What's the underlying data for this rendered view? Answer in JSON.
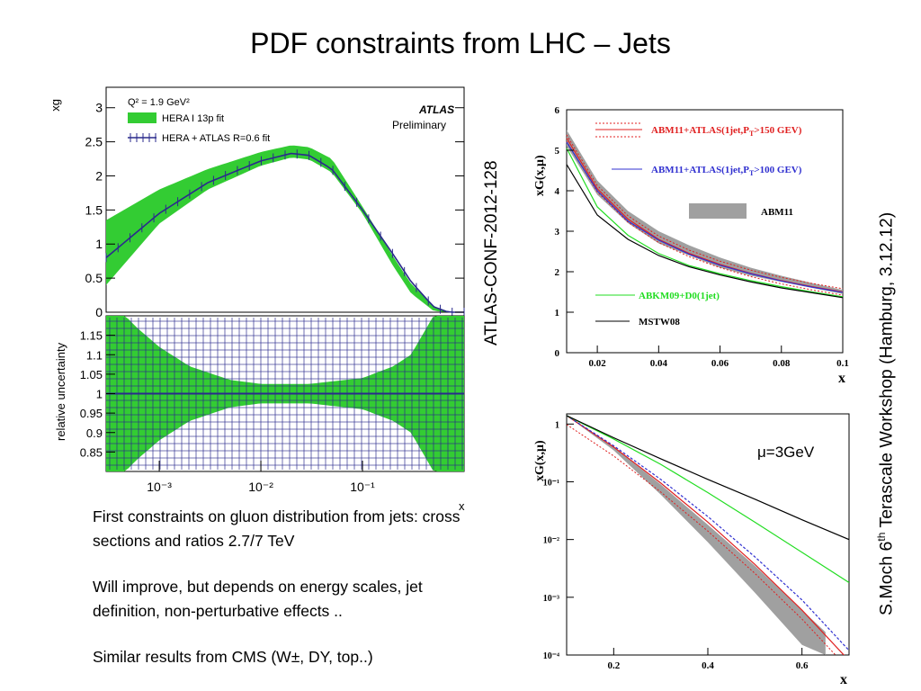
{
  "slide": {
    "title": "PDF constraints from LHC – Jets",
    "side_label_left": "ATLAS-CONF-2012-128",
    "side_label_right_pre": "S.Moch 6",
    "side_label_right_sup": "th",
    "side_label_right_post": " Terascale Workshop (Hamburg, 3.12.12)",
    "bullets": [
      "First constraints on gluon distribution from jets: cross sections and  ratios 2.7/7 TeV",
      "Will improve, but depends on energy scales, jet definition, non-perturbative effects ..",
      "Similar results from CMS (W±, DY, top..)"
    ],
    "colors": {
      "green_band": "#33cc33",
      "atlas_line": "#2a2a8c",
      "abm_red": "#e02020",
      "abm_blue": "#3030d0",
      "abm_gray": "#a0a0a0",
      "abkm_green": "#22dd22",
      "mstw_black": "#000000"
    }
  },
  "chart_data": [
    {
      "type": "line",
      "panel": "ATLAS upper",
      "title": "",
      "ylabel": "xg",
      "xlabel": "x",
      "xscale": "log",
      "xlim": [
        0.0003,
        1
      ],
      "ylim": [
        0,
        3.3
      ],
      "yticks": [
        "0",
        "0.5",
        "1",
        "1.5",
        "2",
        "2.5",
        "3"
      ],
      "legend_heading": "Q² = 1.9 GeV²",
      "atlas_label": "ATLAS",
      "atlas_sub": "Preliminary",
      "series": [
        {
          "name": "HERA I 13p fit",
          "x": [
            0.0003,
            0.001,
            0.003,
            0.01,
            0.02,
            0.03,
            0.05,
            0.1,
            0.2,
            0.3,
            0.5,
            0.7,
            1.0
          ],
          "center": [
            0.9,
            1.55,
            1.95,
            2.25,
            2.35,
            2.33,
            2.15,
            1.5,
            0.75,
            0.35,
            0.05,
            0.0,
            0.0
          ],
          "lo": [
            0.4,
            1.3,
            1.8,
            2.15,
            2.27,
            2.24,
            2.05,
            1.45,
            0.68,
            0.28,
            0.02,
            0.0,
            0.0
          ],
          "hi": [
            1.35,
            1.8,
            2.1,
            2.35,
            2.45,
            2.42,
            2.25,
            1.55,
            0.82,
            0.42,
            0.09,
            0.01,
            0.0
          ]
        },
        {
          "name": "HERA + ATLAS R=0.6 fit",
          "x": [
            0.0003,
            0.001,
            0.003,
            0.01,
            0.02,
            0.03,
            0.05,
            0.1,
            0.2,
            0.3,
            0.5,
            0.7,
            1.0
          ],
          "center": [
            0.8,
            1.45,
            1.9,
            2.22,
            2.33,
            2.3,
            2.1,
            1.5,
            0.85,
            0.45,
            0.08,
            0.0,
            0.0
          ]
        }
      ]
    },
    {
      "type": "area",
      "panel": "ATLAS lower",
      "ylabel": "relative uncertainty",
      "xlabel": "x",
      "xscale": "log",
      "xlim": [
        0.0003,
        1
      ],
      "ylim": [
        0.8,
        1.2
      ],
      "yticks": [
        "0.85",
        "0.9",
        "0.95",
        "1",
        "1.05",
        "1.1",
        "1.15"
      ],
      "xticks": [
        "10⁻³",
        "10⁻²",
        "10⁻¹"
      ],
      "series": [
        {
          "name": "HERA I 13p fit",
          "x": [
            0.0003,
            0.0006,
            0.001,
            0.002,
            0.005,
            0.01,
            0.03,
            0.1,
            0.2,
            0.3,
            0.5,
            0.7
          ],
          "lo": [
            0.75,
            0.83,
            0.88,
            0.93,
            0.965,
            0.975,
            0.975,
            0.96,
            0.93,
            0.9,
            0.8,
            0.75
          ],
          "hi": [
            1.25,
            1.17,
            1.12,
            1.07,
            1.035,
            1.025,
            1.025,
            1.04,
            1.07,
            1.1,
            1.2,
            1.25
          ]
        },
        {
          "name": "HERA + ATLAS R=0.6 fit",
          "x": [
            0.0003,
            0.001,
            0.01,
            0.1,
            0.7
          ],
          "lo": [
            0.998,
            0.998,
            0.998,
            0.998,
            0.998
          ],
          "hi": [
            1.002,
            1.002,
            1.002,
            1.002,
            1.002
          ]
        }
      ]
    },
    {
      "type": "line",
      "panel": "ABM upper",
      "ylabel": "xG(x,μ)",
      "xlabel": "x",
      "xlim": [
        0.01,
        0.1
      ],
      "ylim": [
        0,
        6
      ],
      "xticks": [
        "0.02",
        "0.04",
        "0.06",
        "0.08",
        "0.1"
      ],
      "yticks": [
        "0",
        "1",
        "2",
        "3",
        "4",
        "5",
        "6"
      ],
      "legend": [
        {
          "label": "ABM11+ATLAS(1jet,P",
          "sub": "T",
          "post": ">150 GEV)",
          "color": "#e02020"
        },
        {
          "label": "ABM11+ATLAS(1jet,P",
          "sub": "T",
          "post": ">100 GEV)",
          "color": "#3030d0"
        },
        {
          "label": "ABM11",
          "color": "#a0a0a0"
        },
        {
          "label": "ABKM09+D0(1jet)",
          "color": "#22dd22"
        },
        {
          "label": "MSTW08",
          "color": "#000000"
        }
      ],
      "series": [
        {
          "name": "ABM11",
          "x": [
            0.01,
            0.02,
            0.03,
            0.04,
            0.05,
            0.06,
            0.07,
            0.08,
            0.09,
            0.1
          ],
          "lo": [
            5.1,
            3.9,
            3.2,
            2.7,
            2.4,
            2.1,
            1.9,
            1.75,
            1.6,
            1.45
          ],
          "hi": [
            5.5,
            4.25,
            3.5,
            3.0,
            2.65,
            2.35,
            2.1,
            1.9,
            1.72,
            1.55
          ]
        },
        {
          "name": "ABM11+ATLAS(1jet,PT>150 GEV)",
          "x": [
            0.01,
            0.02,
            0.03,
            0.04,
            0.05,
            0.06,
            0.07,
            0.08,
            0.09,
            0.1
          ],
          "y": [
            5.3,
            4.05,
            3.3,
            2.8,
            2.45,
            2.18,
            1.96,
            1.78,
            1.63,
            1.5
          ]
        },
        {
          "name": "ABM11+ATLAS(1jet,PT>100 GEV)",
          "x": [
            0.01,
            0.02,
            0.03,
            0.04,
            0.05,
            0.06,
            0.07,
            0.08,
            0.09,
            0.1
          ],
          "y": [
            5.2,
            4.0,
            3.25,
            2.78,
            2.43,
            2.16,
            1.95,
            1.77,
            1.62,
            1.49
          ]
        },
        {
          "name": "ABKM09+D0(1jet)",
          "x": [
            0.01,
            0.02,
            0.03,
            0.04,
            0.05,
            0.06,
            0.07,
            0.08,
            0.09,
            0.1
          ],
          "y": [
            5.05,
            3.6,
            2.9,
            2.45,
            2.15,
            1.95,
            1.78,
            1.63,
            1.5,
            1.38
          ]
        },
        {
          "name": "MSTW08",
          "x": [
            0.01,
            0.02,
            0.03,
            0.04,
            0.05,
            0.06,
            0.07,
            0.08,
            0.09,
            0.1
          ],
          "y": [
            4.65,
            3.4,
            2.8,
            2.4,
            2.12,
            1.92,
            1.75,
            1.6,
            1.48,
            1.36
          ]
        }
      ]
    },
    {
      "type": "line",
      "panel": "ABM lower",
      "ylabel": "xG(x,μ)",
      "xlabel": "x",
      "yscale": "log",
      "xlim": [
        0.1,
        0.7
      ],
      "ylim": [
        0.0001,
        1.5
      ],
      "xticks": [
        "0.2",
        "0.4",
        "0.6"
      ],
      "yticks": [
        "1",
        "10⁻¹",
        "10⁻²",
        "10⁻³",
        "10⁻⁴"
      ],
      "annotation": "μ=3GeV",
      "series": [
        {
          "name": "ABM11",
          "x": [
            0.1,
            0.2,
            0.3,
            0.4,
            0.5,
            0.6,
            0.65
          ],
          "lo": [
            1.4,
            0.35,
            0.06,
            0.009,
            0.0012,
            0.00015,
            0.0001
          ],
          "hi": [
            1.4,
            0.4,
            0.09,
            0.018,
            0.0035,
            0.0006,
            0.00025
          ]
        },
        {
          "name": "ABM11+ATLAS(1jet,PT>150 GEV)",
          "x": [
            0.1,
            0.2,
            0.3,
            0.4,
            0.5,
            0.6,
            0.7
          ],
          "y": [
            1.4,
            0.4,
            0.095,
            0.02,
            0.0037,
            0.0006,
            8e-05
          ]
        },
        {
          "name": "ABM11+ATLAS(1jet,PT>100 GEV)",
          "x": [
            0.1,
            0.2,
            0.3,
            0.4,
            0.5,
            0.6,
            0.7
          ],
          "y": [
            1.4,
            0.42,
            0.11,
            0.025,
            0.005,
            0.0009,
            0.00012
          ]
        },
        {
          "name": "ABKM09+D0(1jet)",
          "x": [
            0.1,
            0.2,
            0.3,
            0.4,
            0.5,
            0.6,
            0.7
          ],
          "y": [
            1.4,
            0.55,
            0.2,
            0.065,
            0.02,
            0.006,
            0.0018
          ]
        },
        {
          "name": "MSTW08",
          "x": [
            0.1,
            0.2,
            0.3,
            0.4,
            0.5,
            0.6,
            0.7
          ],
          "y": [
            1.4,
            0.58,
            0.25,
            0.11,
            0.05,
            0.022,
            0.01
          ]
        }
      ]
    }
  ]
}
